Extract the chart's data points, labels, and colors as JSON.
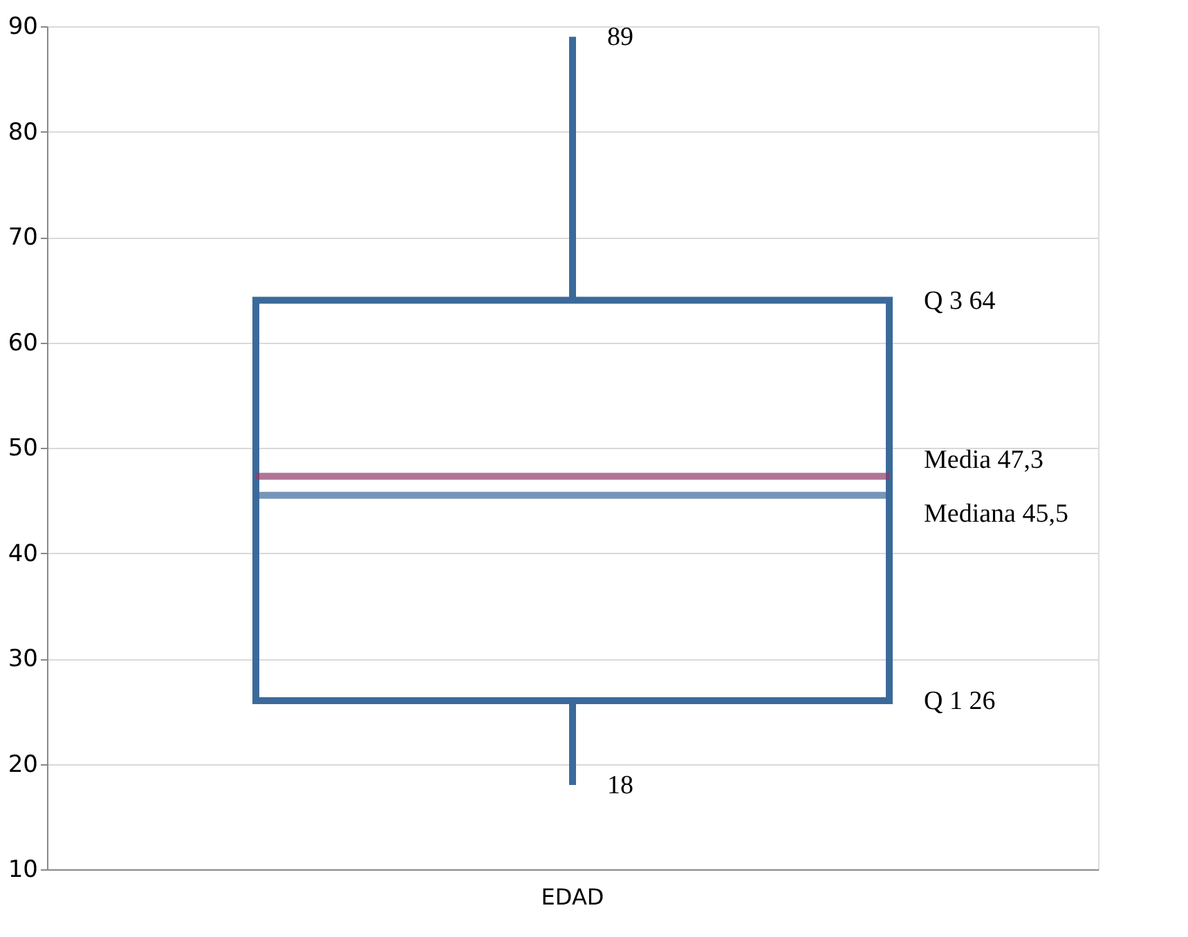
{
  "chart_data": {
    "type": "box",
    "categories": [
      "EDAD"
    ],
    "boxes": [
      {
        "low": 18,
        "q1": 26,
        "median": 45.5,
        "q3": 64,
        "high": 89,
        "mean": 47.3
      }
    ],
    "color": "#3b6a9a",
    "ylim": [
      10,
      90
    ],
    "yticks": [
      10,
      20,
      30,
      40,
      50,
      60,
      70,
      80,
      90
    ],
    "grid": "y",
    "annotations": [
      "89",
      "Q 3  64",
      "Media 47,3",
      "Mediana 45,5",
      "Q 1  26",
      "18"
    ]
  }
}
